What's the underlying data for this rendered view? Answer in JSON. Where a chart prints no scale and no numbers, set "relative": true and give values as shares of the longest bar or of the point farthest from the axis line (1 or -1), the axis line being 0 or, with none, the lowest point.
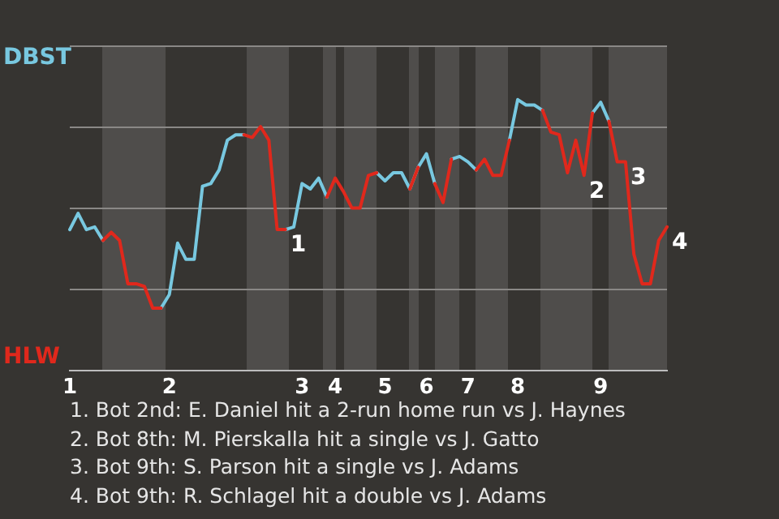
{
  "chart_data": {
    "type": "line",
    "relative": true,
    "categories": [
      "1",
      null,
      null,
      null,
      null,
      null,
      null,
      null,
      null,
      null,
      null,
      null,
      "2",
      null,
      null,
      null,
      null,
      null,
      null,
      null,
      null,
      null,
      null,
      null,
      null,
      null,
      null,
      null,
      "3",
      null,
      null,
      null,
      "4",
      null,
      null,
      null,
      null,
      null,
      "5",
      null,
      null,
      null,
      null,
      "6",
      null,
      null,
      null,
      null,
      "7",
      null,
      null,
      null,
      null,
      null,
      "8",
      null,
      null,
      null,
      null,
      null,
      null,
      null,
      null,
      null,
      "9",
      null,
      null,
      null,
      null,
      null,
      null,
      null,
      null
    ],
    "series": [
      {
        "name": "DBST",
        "color": "#78c8e0",
        "values": [
          0.52,
          0.58,
          0.52,
          0.53,
          0.48,
          null,
          null,
          null,
          null,
          null,
          null,
          0.23,
          0.28,
          0.47,
          0.41,
          0.41,
          0.68,
          0.69,
          0.74,
          0.85,
          0.87,
          0.87,
          null,
          null,
          null,
          null,
          0.52,
          0.53,
          0.69,
          0.67,
          0.71,
          0.64,
          null,
          null,
          null,
          null,
          null,
          0.73,
          0.7,
          0.73,
          0.73,
          0.67,
          0.75,
          0.8,
          0.69,
          null,
          0.78,
          0.79,
          0.77,
          0.74,
          null,
          null,
          null,
          0.85,
          1,
          0.98,
          0.98,
          0.96,
          null,
          null,
          null,
          null,
          null,
          0.95,
          0.99,
          0.92,
          null,
          null,
          null,
          null,
          null,
          null,
          null
        ]
      },
      {
        "name": "HLW",
        "color": "#e0281c",
        "values": [
          null,
          null,
          null,
          null,
          0.48,
          0.51,
          0.48,
          0.32,
          0.32,
          0.31,
          0.23,
          0.23,
          null,
          null,
          null,
          null,
          null,
          null,
          null,
          null,
          null,
          0.87,
          0.86,
          0.9,
          0.85,
          0.52,
          0.52,
          null,
          null,
          null,
          null,
          0.64,
          0.71,
          0.66,
          0.6,
          0.6,
          0.72,
          0.73,
          null,
          null,
          null,
          0.67,
          0.75,
          null,
          0.69,
          0.62,
          0.78,
          null,
          null,
          0.74,
          0.78,
          0.72,
          0.72,
          0.85,
          null,
          null,
          null,
          0.96,
          0.88,
          0.87,
          0.73,
          0.85,
          0.72,
          0.95,
          null,
          0.92,
          0.77,
          0.77,
          0.43,
          0.32,
          0.32,
          0.48,
          0.53
        ]
      }
    ],
    "grid": "y",
    "legend": false,
    "marker": "none",
    "line_style": "solid",
    "annotations": [
      "1",
      "2",
      "3",
      "4",
      "1. Bot 2nd: E. Daniel hit a 2-run home run vs J. Haynes",
      "2. Bot 8th: M. Pierskalla hit a single vs J. Gatto",
      "3. Bot 9th: S. Parson hit a single vs J. Adams",
      "4. Bot 9th: R. Schlagel hit a double vs J. Adams"
    ]
  }
}
